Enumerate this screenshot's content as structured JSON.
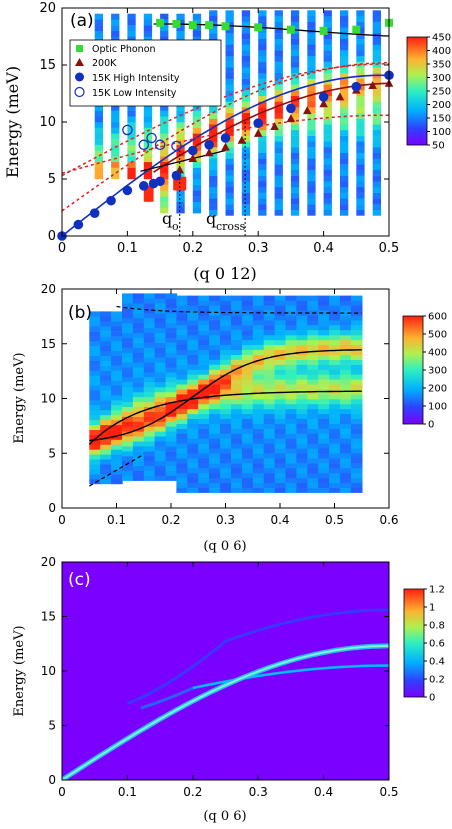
{
  "chart_data": [
    {
      "type": "heatmap",
      "panel_label": "(a)",
      "xlabel": "(q 0 12)",
      "ylabel": "Energy (meV)",
      "xlim": [
        0,
        0.5
      ],
      "ylim": [
        0,
        20
      ],
      "xticks": [
        0,
        0.1,
        0.2,
        0.3,
        0.4,
        0.5
      ],
      "yticks": [
        0,
        5,
        10,
        15,
        20
      ],
      "colorbar": {
        "ticks": [
          50,
          100,
          150,
          200,
          250,
          300,
          350,
          400,
          450
        ],
        "range": [
          50,
          450
        ]
      },
      "legend_position": "top-left",
      "series": [
        {
          "name": "Optic Phonon",
          "marker": "square",
          "color": "#33dd33",
          "x": [
            0.15,
            0.175,
            0.2,
            0.225,
            0.25,
            0.3,
            0.35,
            0.4,
            0.45,
            0.5
          ],
          "y": [
            18.7,
            18.6,
            18.5,
            18.5,
            18.4,
            18.3,
            18.1,
            18.0,
            18.1,
            18.7
          ]
        },
        {
          "name": "200K",
          "marker": "triangle",
          "color": "#8b1010",
          "x": [
            0.18,
            0.2,
            0.225,
            0.25,
            0.275,
            0.3,
            0.325,
            0.35,
            0.375,
            0.4,
            0.425,
            0.45,
            0.475,
            0.5
          ],
          "y": [
            5.8,
            6.8,
            7.3,
            7.8,
            8.4,
            9.0,
            9.6,
            10.3,
            11.0,
            11.6,
            12.2,
            12.8,
            13.2,
            13.4
          ]
        },
        {
          "name": "15K High Intensity",
          "marker": "circle-filled",
          "color": "#1030c0",
          "x": [
            0,
            0.025,
            0.05,
            0.075,
            0.1,
            0.125,
            0.14,
            0.15,
            0.175,
            0.2,
            0.225,
            0.25,
            0.3,
            0.35,
            0.4,
            0.45,
            0.5
          ],
          "y": [
            0,
            1.0,
            2.0,
            3.1,
            4.0,
            4.4,
            4.6,
            4.8,
            5.3,
            7.5,
            8.0,
            8.6,
            9.9,
            11.2,
            12.2,
            13.1,
            14.1
          ]
        },
        {
          "name": "15K Low Intensity",
          "marker": "circle-open",
          "color": "#1030c0",
          "x": [
            0.1,
            0.125,
            0.137,
            0.15,
            0.175
          ],
          "y": [
            9.3,
            8.0,
            8.6,
            8.0,
            7.9
          ]
        }
      ],
      "annotations": [
        {
          "text": "q",
          "sub": "o",
          "x": 0.18
        },
        {
          "text": "q",
          "sub": "cross",
          "x": 0.28
        }
      ]
    },
    {
      "type": "heatmap",
      "panel_label": "(b)",
      "xlabel": "(q 0 6)",
      "ylabel": "Energy (meV)",
      "xlim": [
        0,
        0.6
      ],
      "ylim": [
        0,
        20
      ],
      "xticks": [
        0,
        0.1,
        0.2,
        0.3,
        0.4,
        0.5,
        0.6
      ],
      "yticks": [
        0,
        5,
        10,
        15,
        20
      ],
      "colorbar": {
        "ticks": [
          0,
          100,
          200,
          300,
          400,
          500,
          600
        ],
        "range": [
          0,
          600
        ]
      }
    },
    {
      "type": "heatmap",
      "panel_label": "(c)",
      "xlabel": "(q 0 6)",
      "ylabel": "Energy (meV)",
      "xlim": [
        0,
        0.5
      ],
      "ylim": [
        0,
        20
      ],
      "xticks": [
        0,
        0.1,
        0.2,
        0.3,
        0.4,
        0.5
      ],
      "yticks": [
        0,
        5,
        10,
        15,
        20
      ],
      "colorbar": {
        "ticks": [
          0,
          0.2,
          0.4,
          0.6,
          0.8,
          1,
          1.2
        ],
        "range": [
          0,
          1.2
        ]
      }
    }
  ]
}
